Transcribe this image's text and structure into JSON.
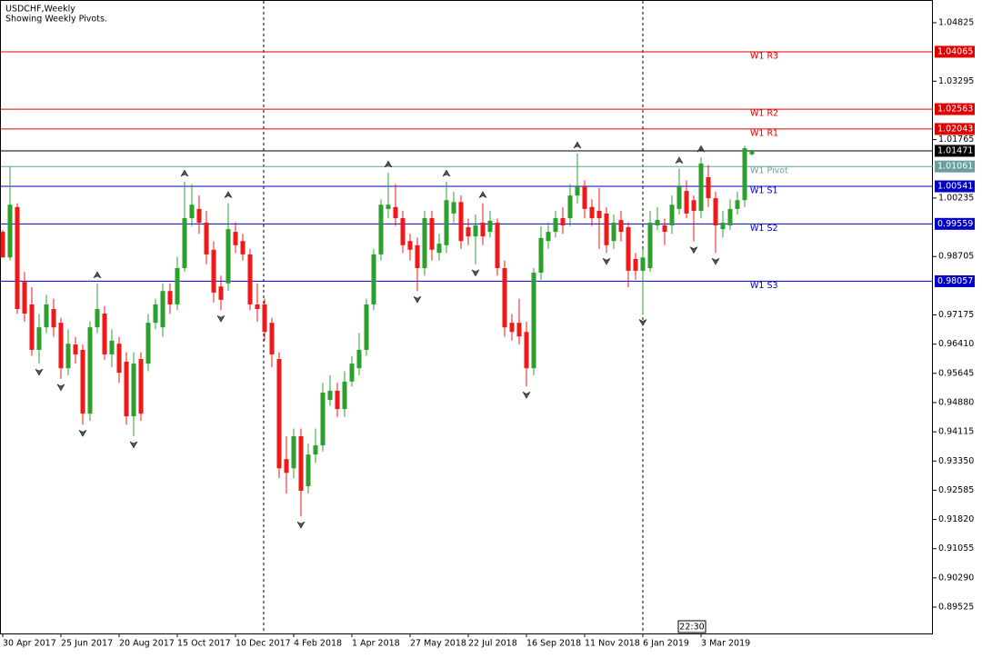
{
  "chart_data": {
    "type": "candlestick",
    "title": "USDCHF,Weekly",
    "subtitle": "Showing Weekly Pivots.",
    "timer": "22:30",
    "categories": [
      "30 Apr 2017",
      null,
      null,
      null,
      null,
      null,
      null,
      null,
      "25 Jun 2017",
      null,
      null,
      null,
      null,
      null,
      null,
      null,
      "20 Aug 2017",
      null,
      null,
      null,
      null,
      null,
      null,
      null,
      "15 Oct 2017",
      null,
      null,
      null,
      null,
      null,
      null,
      null,
      "10 Dec 2017",
      null,
      null,
      null,
      null,
      null,
      null,
      null,
      "4 Feb 2018",
      null,
      null,
      null,
      null,
      null,
      null,
      null,
      "1 Apr 2018",
      null,
      null,
      null,
      null,
      null,
      null,
      null,
      "27 May 2018",
      null,
      null,
      null,
      null,
      null,
      null,
      null,
      "22 Jul 2018",
      null,
      null,
      null,
      null,
      null,
      null,
      null,
      "16 Sep 2018",
      null,
      null,
      null,
      null,
      null,
      null,
      null,
      "11 Nov 2018",
      null,
      null,
      null,
      null,
      null,
      null,
      null,
      "6 Jan 2019",
      null,
      null,
      null,
      null,
      null,
      null,
      null,
      "3 Mar 2019",
      null,
      null,
      null,
      null,
      null,
      null,
      null
    ],
    "open": [
      0.9935,
      0.9868,
      1.0,
      0.9804,
      0.9745,
      0.9626,
      0.9685,
      0.9733,
      0.9697,
      0.9578,
      0.964,
      0.9626,
      0.9459,
      0.9685,
      0.9721,
      0.9614,
      0.9642,
      0.9595,
      0.9452,
      0.9602,
      0.959,
      0.9697,
      0.9685,
      0.978,
      0.9745,
      0.984,
      0.9971,
      0.9995,
      0.9959,
      0.9888,
      0.9792,
      0.98,
      0.9935,
      0.9911,
      0.9876,
      0.9745,
      0.9745,
      0.9697,
      0.9602,
      0.934,
      0.9316,
      0.94,
      0.9269,
      0.9352,
      0.9376,
      0.9495,
      0.9519,
      0.9471,
      0.9543,
      0.9578,
      0.9626,
      0.9745,
      0.9876,
      0.9995,
      1.0,
      0.9971,
      0.9911,
      0.99,
      0.984,
      0.9971,
      0.988,
      0.99,
      0.9983,
      1.0013,
      0.9947,
      0.9923,
      0.9959,
      0.9935,
      0.9959,
      0.984,
      0.9697,
      0.9697,
      0.9673,
      0.9578,
      0.9828,
      0.9911,
      0.9935,
      0.9971,
      0.9971,
      1.003,
      1.0054,
      1.0,
      0.999,
      0.9983,
      0.9911,
      0.9966,
      0.9947,
      0.9864,
      0.9833,
      0.984,
      0.9952,
      0.9952,
      0.9952,
      0.9995,
      1.0042,
      1.0018,
      0.999,
      1.0078,
      1.0023,
      0.9942,
      0.9952,
      0.9995,
      1.0018,
      1.0138
    ],
    "high": [
      0.994,
      1.0106,
      1.001,
      0.983,
      0.979,
      0.972,
      0.977,
      0.976,
      0.971,
      0.968,
      0.966,
      0.964,
      0.97,
      0.98,
      0.974,
      0.968,
      0.966,
      0.962,
      0.962,
      0.962,
      0.972,
      0.976,
      0.98,
      0.98,
      0.987,
      1.0066,
      1.006,
      1.003,
      0.999,
      0.991,
      0.982,
      1.001,
      0.996,
      0.993,
      0.989,
      0.98,
      0.976,
      0.971,
      0.962,
      0.94,
      0.942,
      0.942,
      0.938,
      0.942,
      0.954,
      0.956,
      0.954,
      0.957,
      0.961,
      0.967,
      0.976,
      0.989,
      1.002,
      1.009,
      1.006,
      0.999,
      0.993,
      0.992,
      0.999,
      0.999,
      0.993,
      1.0066,
      1.004,
      1.003,
      0.997,
      0.998,
      1.001,
      0.999,
      0.997,
      0.986,
      0.972,
      0.976,
      0.97,
      0.984,
      0.995,
      0.996,
      0.999,
      1.0,
      1.006,
      1.014,
      1.007,
      1.002,
      1.005,
      1.0,
      0.998,
      0.999,
      0.996,
      0.988,
      0.989,
      0.999,
      1.0,
      0.997,
      1.003,
      1.01,
      1.007,
      1.003,
      1.013,
      1.011,
      1.004,
      0.999,
      1.002,
      1.004,
      1.016,
      1.015
    ],
    "low": [
      0.9868,
      0.986,
      0.972,
      0.97,
      0.961,
      0.959,
      0.967,
      0.966,
      0.955,
      0.956,
      0.959,
      0.943,
      0.944,
      0.967,
      0.96,
      0.958,
      0.954,
      0.943,
      0.94,
      0.944,
      0.957,
      0.968,
      0.966,
      0.972,
      0.973,
      0.983,
      0.995,
      0.993,
      0.985,
      0.975,
      0.973,
      0.978,
      0.988,
      0.986,
      0.973,
      0.97,
      0.965,
      0.958,
      0.929,
      0.925,
      0.929,
      0.919,
      0.925,
      0.933,
      0.936,
      0.948,
      0.945,
      0.945,
      0.953,
      0.956,
      0.961,
      0.973,
      0.986,
      0.997,
      0.995,
      0.988,
      0.986,
      0.978,
      0.982,
      0.986,
      0.986,
      0.988,
      0.996,
      0.989,
      0.99,
      0.985,
      0.99,
      0.992,
      0.982,
      0.966,
      0.965,
      0.964,
      0.953,
      0.956,
      0.981,
      0.989,
      0.992,
      0.993,
      0.995,
      1.001,
      0.997,
      0.995,
      0.989,
      0.988,
      0.989,
      0.991,
      0.979,
      0.981,
      0.972,
      0.983,
      0.994,
      0.99,
      0.993,
      0.998,
      0.997,
      0.991,
      0.997,
      1.0,
      0.988,
      0.992,
      0.994,
      0.998,
      1.0,
      1.0135
    ],
    "close": [
      0.9868,
      1.0006,
      0.9733,
      0.9721,
      0.9626,
      0.9685,
      0.9745,
      0.9685,
      0.9578,
      0.9642,
      0.9614,
      0.9459,
      0.9685,
      0.9733,
      0.9614,
      0.965,
      0.9566,
      0.9452,
      0.959,
      0.9459,
      0.9697,
      0.9745,
      0.978,
      0.9745,
      0.984,
      0.9971,
      1.0006,
      0.9959,
      0.9876,
      0.9776,
      0.9757,
      0.9942,
      0.99,
      0.9876,
      0.9745,
      0.9733,
      0.9673,
      0.9614,
      0.9316,
      0.9304,
      0.94,
      0.9257,
      0.9352,
      0.9376,
      0.9514,
      0.9519,
      0.9471,
      0.9543,
      0.959,
      0.9626,
      0.9745,
      0.9876,
      1.0006,
      1.0006,
      0.9971,
      0.99,
      0.9888,
      0.984,
      0.9971,
      0.9888,
      0.9904,
      1.0018,
      1.0013,
      0.9911,
      0.9923,
      0.9952,
      0.9923,
      0.9964,
      0.984,
      0.9685,
      0.9673,
      0.9661,
      0.9578,
      0.9828,
      0.9919,
      0.9935,
      0.9971,
      0.9952,
      1.003,
      1.0054,
      0.9995,
      0.9971,
      0.9971,
      0.99,
      0.9959,
      0.9935,
      0.9833,
      0.9833,
      0.9868,
      0.9959,
      0.9966,
      0.9935,
      1.0006,
      1.0054,
      0.9983,
      0.999,
      1.0114,
      1.0023,
      0.9952,
      0.9959,
      0.9995,
      1.0018,
      1.0154,
      1.0147
    ],
    "up_color": "#2ca02c",
    "down_color": "#f21818",
    "ylim": [
      0.88835,
      1.0542
    ],
    "yticks": [
      1.04825,
      1.03295,
      1.01765,
      1.00235,
      0.98705,
      0.97175,
      {
        "value": 0.9641,
        "label": "0.96410"
      },
      0.95645,
      {
        "value": 0.9488,
        "label": "0.94880"
      },
      0.94115,
      {
        "value": 0.9335,
        "label": "0.93350"
      },
      0.92585,
      {
        "value": 0.9182,
        "label": "0.91820"
      },
      0.91055,
      {
        "value": 0.9029,
        "label": "0.90290"
      },
      0.89525
    ],
    "levels": [
      {
        "name": "W1 R3",
        "value": 1.04065,
        "color": "#e00000"
      },
      {
        "name": "W1 R2",
        "value": 1.02563,
        "color": "#e00000"
      },
      {
        "name": "W1 R1",
        "value": 1.02043,
        "color": "#e00000"
      },
      {
        "name": "W1 Pivot",
        "value": 1.01061,
        "color": "#6a9f9f"
      },
      {
        "name": "W1 S1",
        "value": 1.00541,
        "color": "#0000c8"
      },
      {
        "name": "W1 S2",
        "value": 0.99559,
        "color": "#0000c8"
      },
      {
        "name": "W1 S3",
        "value": 0.98057,
        "color": "#0000c8"
      }
    ],
    "current_price": 1.01471,
    "current_color": "#000000"
  }
}
